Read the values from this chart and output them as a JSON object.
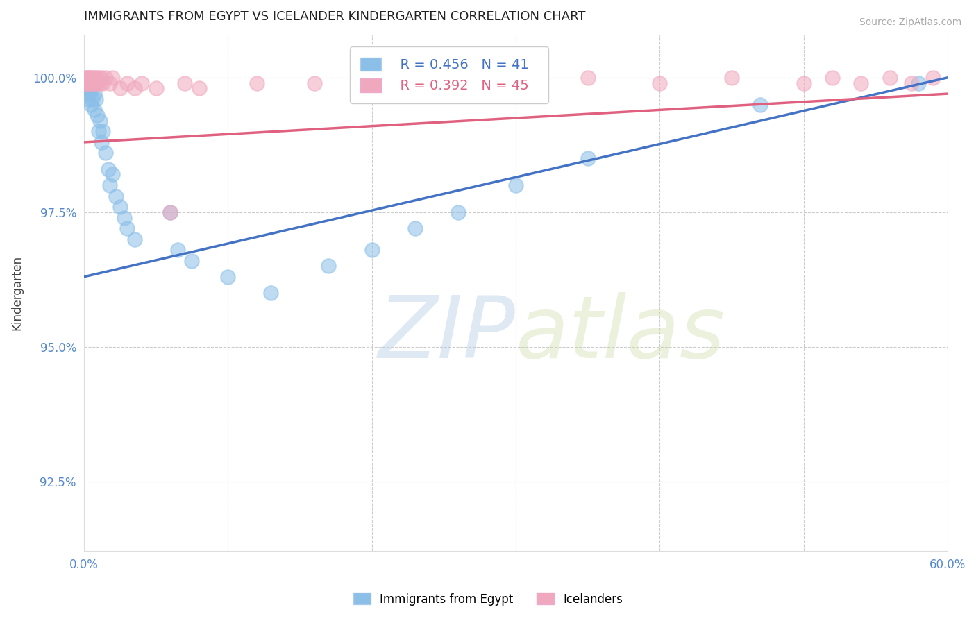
{
  "title": "IMMIGRANTS FROM EGYPT VS ICELANDER KINDERGARTEN CORRELATION CHART",
  "source_text": "Source: ZipAtlas.com",
  "xlabel_blue": "Immigrants from Egypt",
  "xlabel_pink": "Icelanders",
  "ylabel": "Kindergarten",
  "watermark_zip": "ZIP",
  "watermark_atlas": "atlas",
  "x_min": 0.0,
  "x_max": 0.6,
  "y_min": 0.912,
  "y_max": 1.008,
  "yticks": [
    0.925,
    0.95,
    0.975,
    1.0
  ],
  "ytick_labels": [
    "92.5%",
    "95.0%",
    "97.5%",
    "100.0%"
  ],
  "xtick_positions": [
    0.0,
    0.6
  ],
  "xtick_labels": [
    "0.0%",
    "60.0%"
  ],
  "blue_R": 0.456,
  "blue_N": 41,
  "pink_R": 0.392,
  "pink_N": 45,
  "blue_color": "#8bbfe8",
  "pink_color": "#f0a8be",
  "blue_line_color": "#4472c4",
  "pink_line_color": "#e06080",
  "tick_color": "#5588cc",
  "grid_color": "#cccccc",
  "blue_x": [
    0.001,
    0.001,
    0.002,
    0.002,
    0.003,
    0.003,
    0.004,
    0.004,
    0.005,
    0.005,
    0.006,
    0.007,
    0.007,
    0.008,
    0.009,
    0.01,
    0.011,
    0.012,
    0.013,
    0.015,
    0.017,
    0.018,
    0.02,
    0.022,
    0.025,
    0.028,
    0.03,
    0.035,
    0.06,
    0.065,
    0.075,
    0.1,
    0.13,
    0.17,
    0.2,
    0.23,
    0.26,
    0.3,
    0.35,
    0.47,
    0.58
  ],
  "blue_y": [
    0.999,
    0.998,
    0.999,
    0.997,
    0.998,
    0.996,
    0.999,
    0.997,
    0.998,
    0.995,
    0.996,
    0.997,
    0.994,
    0.996,
    0.993,
    0.99,
    0.992,
    0.988,
    0.99,
    0.986,
    0.983,
    0.98,
    0.982,
    0.978,
    0.976,
    0.974,
    0.972,
    0.97,
    0.975,
    0.968,
    0.966,
    0.963,
    0.96,
    0.965,
    0.968,
    0.972,
    0.975,
    0.98,
    0.985,
    0.995,
    0.999
  ],
  "pink_x": [
    0.001,
    0.001,
    0.002,
    0.002,
    0.002,
    0.003,
    0.003,
    0.004,
    0.004,
    0.005,
    0.005,
    0.006,
    0.006,
    0.007,
    0.008,
    0.008,
    0.009,
    0.01,
    0.011,
    0.012,
    0.013,
    0.015,
    0.018,
    0.02,
    0.025,
    0.03,
    0.035,
    0.04,
    0.05,
    0.06,
    0.07,
    0.08,
    0.12,
    0.16,
    0.2,
    0.28,
    0.35,
    0.4,
    0.45,
    0.5,
    0.52,
    0.54,
    0.56,
    0.575,
    0.59
  ],
  "pink_y": [
    1.0,
    0.999,
    1.0,
    0.999,
    1.0,
    1.0,
    0.999,
    1.0,
    0.999,
    1.0,
    0.999,
    1.0,
    0.999,
    1.0,
    0.999,
    1.0,
    0.999,
    1.0,
    0.999,
    1.0,
    0.999,
    1.0,
    0.999,
    1.0,
    0.998,
    0.999,
    0.998,
    0.999,
    0.998,
    0.975,
    0.999,
    0.998,
    0.999,
    0.999,
    0.999,
    0.999,
    1.0,
    0.999,
    1.0,
    0.999,
    1.0,
    0.999,
    1.0,
    0.999,
    1.0
  ],
  "blue_trend_x0": 0.0,
  "blue_trend_y0": 0.963,
  "blue_trend_x1": 0.6,
  "blue_trend_y1": 1.0,
  "pink_trend_x0": 0.0,
  "pink_trend_y0": 0.988,
  "pink_trend_x1": 0.6,
  "pink_trend_y1": 0.997
}
